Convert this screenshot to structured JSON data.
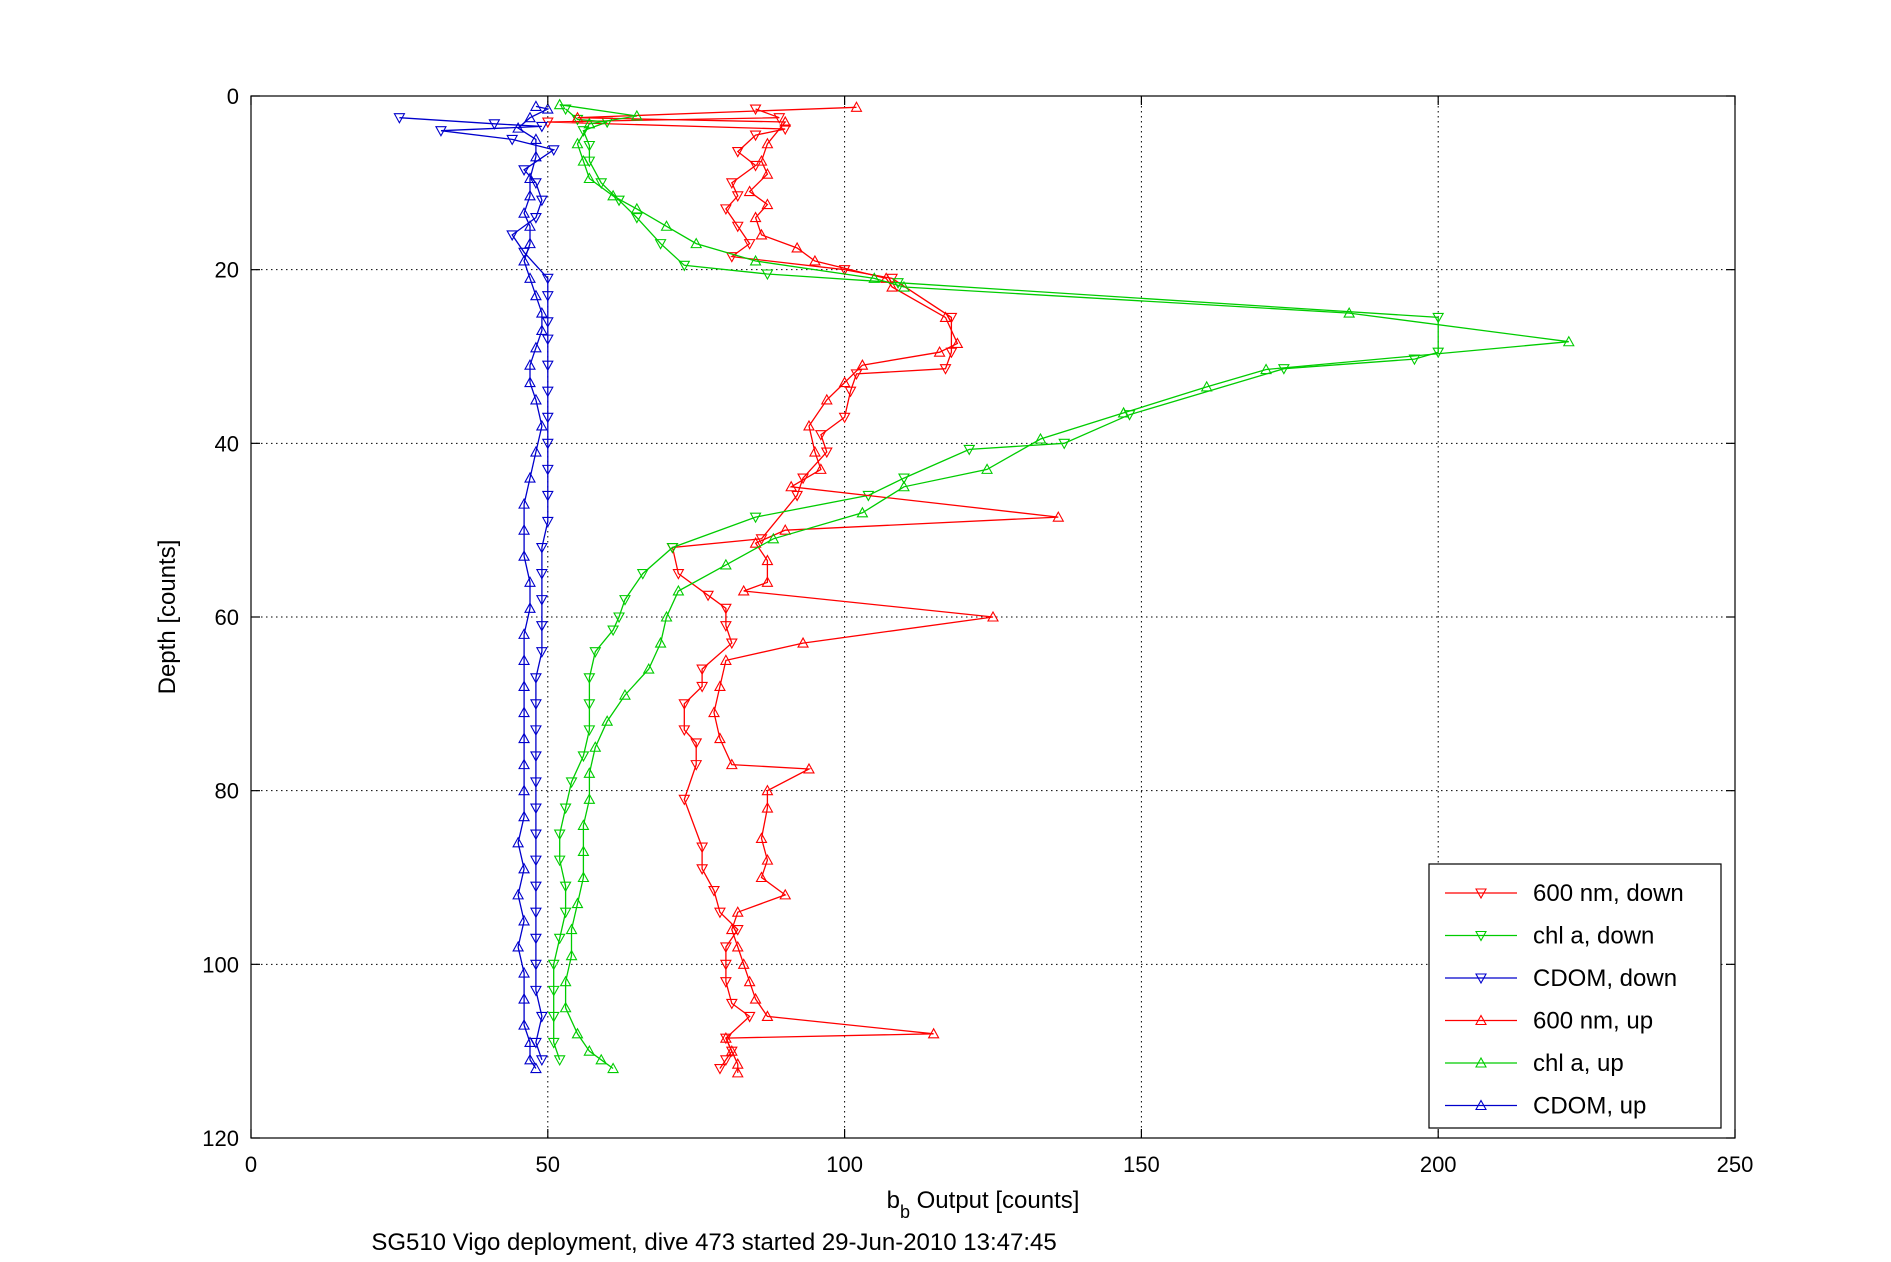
{
  "caption": "SG510 Vigo deployment, dive 473 started 29-Jun-2010 13:47:45",
  "chart_data": {
    "type": "line",
    "title": "",
    "xlabel_main": "b",
    "xlabel_sub": "b",
    "xlabel_rest": " Output [counts]",
    "ylabel": "Depth [counts]",
    "xlim": [
      0,
      250
    ],
    "ylim": [
      0,
      120
    ],
    "y_reversed": true,
    "xticks": [
      0,
      50,
      100,
      150,
      200,
      250
    ],
    "yticks": [
      0,
      20,
      40,
      60,
      80,
      100,
      120
    ],
    "grid": true,
    "legend_position": "bottom-right",
    "series": [
      {
        "name": "600 nm, down",
        "color": "#ff0000",
        "marker": "triangle-down",
        "points": [
          [
            85,
            1.5
          ],
          [
            89,
            2.5
          ],
          [
            50,
            3
          ],
          [
            90,
            3.8
          ],
          [
            85,
            4.5
          ],
          [
            82,
            6.4
          ],
          [
            85,
            8
          ],
          [
            81,
            10
          ],
          [
            82,
            11.5
          ],
          [
            80,
            13
          ],
          [
            82,
            15
          ],
          [
            84,
            17
          ],
          [
            81,
            18.5
          ],
          [
            100,
            20
          ],
          [
            108,
            21
          ],
          [
            118,
            25.5
          ],
          [
            118,
            29.5
          ],
          [
            117,
            31.4
          ],
          [
            102,
            32
          ],
          [
            101,
            34
          ],
          [
            100,
            37
          ],
          [
            96,
            39
          ],
          [
            97,
            41
          ],
          [
            93,
            44
          ],
          [
            92,
            46
          ],
          [
            86,
            51
          ],
          [
            71,
            52
          ],
          [
            72,
            55
          ],
          [
            77,
            57.5
          ],
          [
            80,
            59
          ],
          [
            80,
            61
          ],
          [
            81,
            63
          ],
          [
            76,
            66
          ],
          [
            76,
            68
          ],
          [
            73,
            70
          ],
          [
            73,
            73
          ],
          [
            75,
            74.5
          ],
          [
            75,
            77
          ],
          [
            73,
            81
          ],
          [
            76,
            86.5
          ],
          [
            76,
            89
          ],
          [
            78,
            91.5
          ],
          [
            79,
            94
          ],
          [
            82,
            96
          ],
          [
            80,
            98
          ],
          [
            80,
            100
          ],
          [
            80,
            102
          ],
          [
            81,
            104.5
          ],
          [
            84,
            106
          ],
          [
            80,
            108.5
          ],
          [
            81,
            110
          ],
          [
            80,
            111
          ],
          [
            79,
            112
          ]
        ]
      },
      {
        "name": "chl a, down",
        "color": "#00cc00",
        "marker": "triangle-down",
        "points": [
          [
            53,
            1.5
          ],
          [
            55,
            2.7
          ],
          [
            60,
            3
          ],
          [
            56,
            4
          ],
          [
            57,
            5.7
          ],
          [
            57,
            7.5
          ],
          [
            59,
            10
          ],
          [
            62,
            12
          ],
          [
            65,
            14
          ],
          [
            69,
            17
          ],
          [
            73,
            19.5
          ],
          [
            87,
            20.5
          ],
          [
            109,
            21.5
          ],
          [
            200,
            25.5
          ],
          [
            200,
            29.5
          ],
          [
            196,
            30.3
          ],
          [
            174,
            31.4
          ],
          [
            148,
            36.7
          ],
          [
            137,
            40
          ],
          [
            121,
            40.7
          ],
          [
            110,
            44
          ],
          [
            104,
            46
          ],
          [
            85,
            48.5
          ],
          [
            71,
            52
          ],
          [
            66,
            55
          ],
          [
            63,
            58
          ],
          [
            62,
            60
          ],
          [
            61,
            61.5
          ],
          [
            58,
            64
          ],
          [
            57,
            67
          ],
          [
            57,
            70
          ],
          [
            57,
            73
          ],
          [
            56,
            76
          ],
          [
            54,
            79
          ],
          [
            53,
            82
          ],
          [
            52,
            85
          ],
          [
            52,
            88
          ],
          [
            53,
            91
          ],
          [
            53,
            94
          ],
          [
            52,
            97
          ],
          [
            51,
            100
          ],
          [
            51,
            103
          ],
          [
            51,
            106
          ],
          [
            51,
            109
          ],
          [
            52,
            111
          ]
        ]
      },
      {
        "name": "CDOM, down",
        "color": "#0000cc",
        "marker": "triangle-down",
        "points": [
          [
            25,
            2.5
          ],
          [
            41,
            3.2
          ],
          [
            49,
            3.5
          ],
          [
            32,
            4
          ],
          [
            44,
            5
          ],
          [
            51,
            6.2
          ],
          [
            46,
            8.5
          ],
          [
            48,
            10
          ],
          [
            49,
            12
          ],
          [
            48,
            14
          ],
          [
            44,
            16
          ],
          [
            46,
            18
          ],
          [
            50,
            21
          ],
          [
            50,
            23
          ],
          [
            50,
            26
          ],
          [
            50,
            28
          ],
          [
            50,
            31
          ],
          [
            50,
            34
          ],
          [
            50,
            37
          ],
          [
            50,
            40
          ],
          [
            50,
            43
          ],
          [
            50,
            46
          ],
          [
            50,
            49
          ],
          [
            49,
            52
          ],
          [
            49,
            55
          ],
          [
            49,
            58
          ],
          [
            49,
            61
          ],
          [
            49,
            64
          ],
          [
            48,
            67
          ],
          [
            48,
            70
          ],
          [
            48,
            73
          ],
          [
            48,
            76
          ],
          [
            48,
            79
          ],
          [
            48,
            82
          ],
          [
            48,
            85
          ],
          [
            48,
            88
          ],
          [
            48,
            91
          ],
          [
            48,
            94
          ],
          [
            48,
            97
          ],
          [
            48,
            100
          ],
          [
            48,
            103
          ],
          [
            49,
            106
          ],
          [
            48,
            109
          ],
          [
            49,
            111
          ]
        ]
      },
      {
        "name": "600 nm, up",
        "color": "#ff0000",
        "marker": "triangle-up",
        "points": [
          [
            102,
            1.3
          ],
          [
            55,
            2.5
          ],
          [
            90,
            3
          ],
          [
            87,
            5.5
          ],
          [
            86,
            7.5
          ],
          [
            87,
            9
          ],
          [
            84,
            11
          ],
          [
            87,
            12.5
          ],
          [
            85,
            14
          ],
          [
            86,
            16
          ],
          [
            92,
            17.5
          ],
          [
            95,
            19
          ],
          [
            107,
            21
          ],
          [
            108,
            22
          ],
          [
            117,
            25.5
          ],
          [
            119,
            28.5
          ],
          [
            116,
            29.5
          ],
          [
            103,
            31
          ],
          [
            100,
            33
          ],
          [
            97,
            35
          ],
          [
            94,
            38
          ],
          [
            95,
            41
          ],
          [
            96,
            43
          ],
          [
            91,
            45
          ],
          [
            136,
            48.5
          ],
          [
            90,
            50
          ],
          [
            85,
            51.5
          ],
          [
            87,
            53.5
          ],
          [
            87,
            56
          ],
          [
            83,
            57
          ],
          [
            125,
            60
          ],
          [
            93,
            63
          ],
          [
            80,
            65
          ],
          [
            79,
            68
          ],
          [
            78,
            71
          ],
          [
            79,
            74
          ],
          [
            81,
            77
          ],
          [
            94,
            77.5
          ],
          [
            87,
            80
          ],
          [
            87,
            82
          ],
          [
            86,
            85.5
          ],
          [
            87,
            88
          ],
          [
            86,
            90
          ],
          [
            90,
            92
          ],
          [
            82,
            94
          ],
          [
            81,
            96
          ],
          [
            82,
            98
          ],
          [
            83,
            100
          ],
          [
            84,
            102
          ],
          [
            85,
            104
          ],
          [
            87,
            106
          ],
          [
            115,
            108
          ],
          [
            80,
            108.5
          ],
          [
            81,
            110
          ],
          [
            82,
            111.5
          ],
          [
            82,
            112.5
          ]
        ]
      },
      {
        "name": "chl a, up",
        "color": "#00cc00",
        "marker": "triangle-up",
        "points": [
          [
            52,
            1
          ],
          [
            65,
            2.3
          ],
          [
            57,
            3.2
          ],
          [
            55,
            5.5
          ],
          [
            56,
            7.5
          ],
          [
            57,
            9.5
          ],
          [
            61,
            11.5
          ],
          [
            65,
            13
          ],
          [
            70,
            15
          ],
          [
            75,
            17
          ],
          [
            85,
            19
          ],
          [
            105,
            21
          ],
          [
            110,
            22
          ],
          [
            185,
            25
          ],
          [
            222,
            28.3
          ],
          [
            171,
            31.5
          ],
          [
            161,
            33.5
          ],
          [
            147,
            36.5
          ],
          [
            133,
            39.5
          ],
          [
            124,
            43
          ],
          [
            110,
            45
          ],
          [
            103,
            48
          ],
          [
            88,
            51
          ],
          [
            80,
            54
          ],
          [
            72,
            57
          ],
          [
            70,
            60
          ],
          [
            69,
            63
          ],
          [
            67,
            66
          ],
          [
            63,
            69
          ],
          [
            60,
            72
          ],
          [
            58,
            75
          ],
          [
            57,
            78
          ],
          [
            57,
            81
          ],
          [
            56,
            84
          ],
          [
            56,
            87
          ],
          [
            56,
            90
          ],
          [
            55,
            93
          ],
          [
            54,
            96
          ],
          [
            54,
            99
          ],
          [
            53,
            102
          ],
          [
            53,
            105
          ],
          [
            55,
            108
          ],
          [
            57,
            110
          ],
          [
            59,
            111
          ],
          [
            61,
            112
          ]
        ]
      },
      {
        "name": "CDOM, up",
        "color": "#0000cc",
        "marker": "triangle-up",
        "points": [
          [
            48,
            1.2
          ],
          [
            50,
            1.5
          ],
          [
            47,
            2.5
          ],
          [
            45,
            3.7
          ],
          [
            48,
            5
          ],
          [
            48,
            7
          ],
          [
            47,
            9.5
          ],
          [
            47,
            11.5
          ],
          [
            46,
            13.5
          ],
          [
            47,
            15
          ],
          [
            47,
            17
          ],
          [
            46,
            19
          ],
          [
            47,
            21
          ],
          [
            48,
            23
          ],
          [
            49,
            25
          ],
          [
            49,
            27
          ],
          [
            48,
            29
          ],
          [
            47,
            31
          ],
          [
            47,
            33
          ],
          [
            48,
            35
          ],
          [
            49,
            38
          ],
          [
            48,
            41
          ],
          [
            47,
            44
          ],
          [
            46,
            47
          ],
          [
            46,
            50
          ],
          [
            46,
            53
          ],
          [
            47,
            56
          ],
          [
            47,
            59
          ],
          [
            46,
            62
          ],
          [
            46,
            65
          ],
          [
            46,
            68
          ],
          [
            46,
            71
          ],
          [
            46,
            74
          ],
          [
            46,
            77
          ],
          [
            46,
            80
          ],
          [
            46,
            83
          ],
          [
            45,
            86
          ],
          [
            46,
            89
          ],
          [
            45,
            92
          ],
          [
            46,
            95
          ],
          [
            45,
            98
          ],
          [
            46,
            101
          ],
          [
            46,
            104
          ],
          [
            46,
            107
          ],
          [
            47,
            109
          ],
          [
            47,
            111
          ],
          [
            48,
            112
          ]
        ]
      }
    ]
  }
}
